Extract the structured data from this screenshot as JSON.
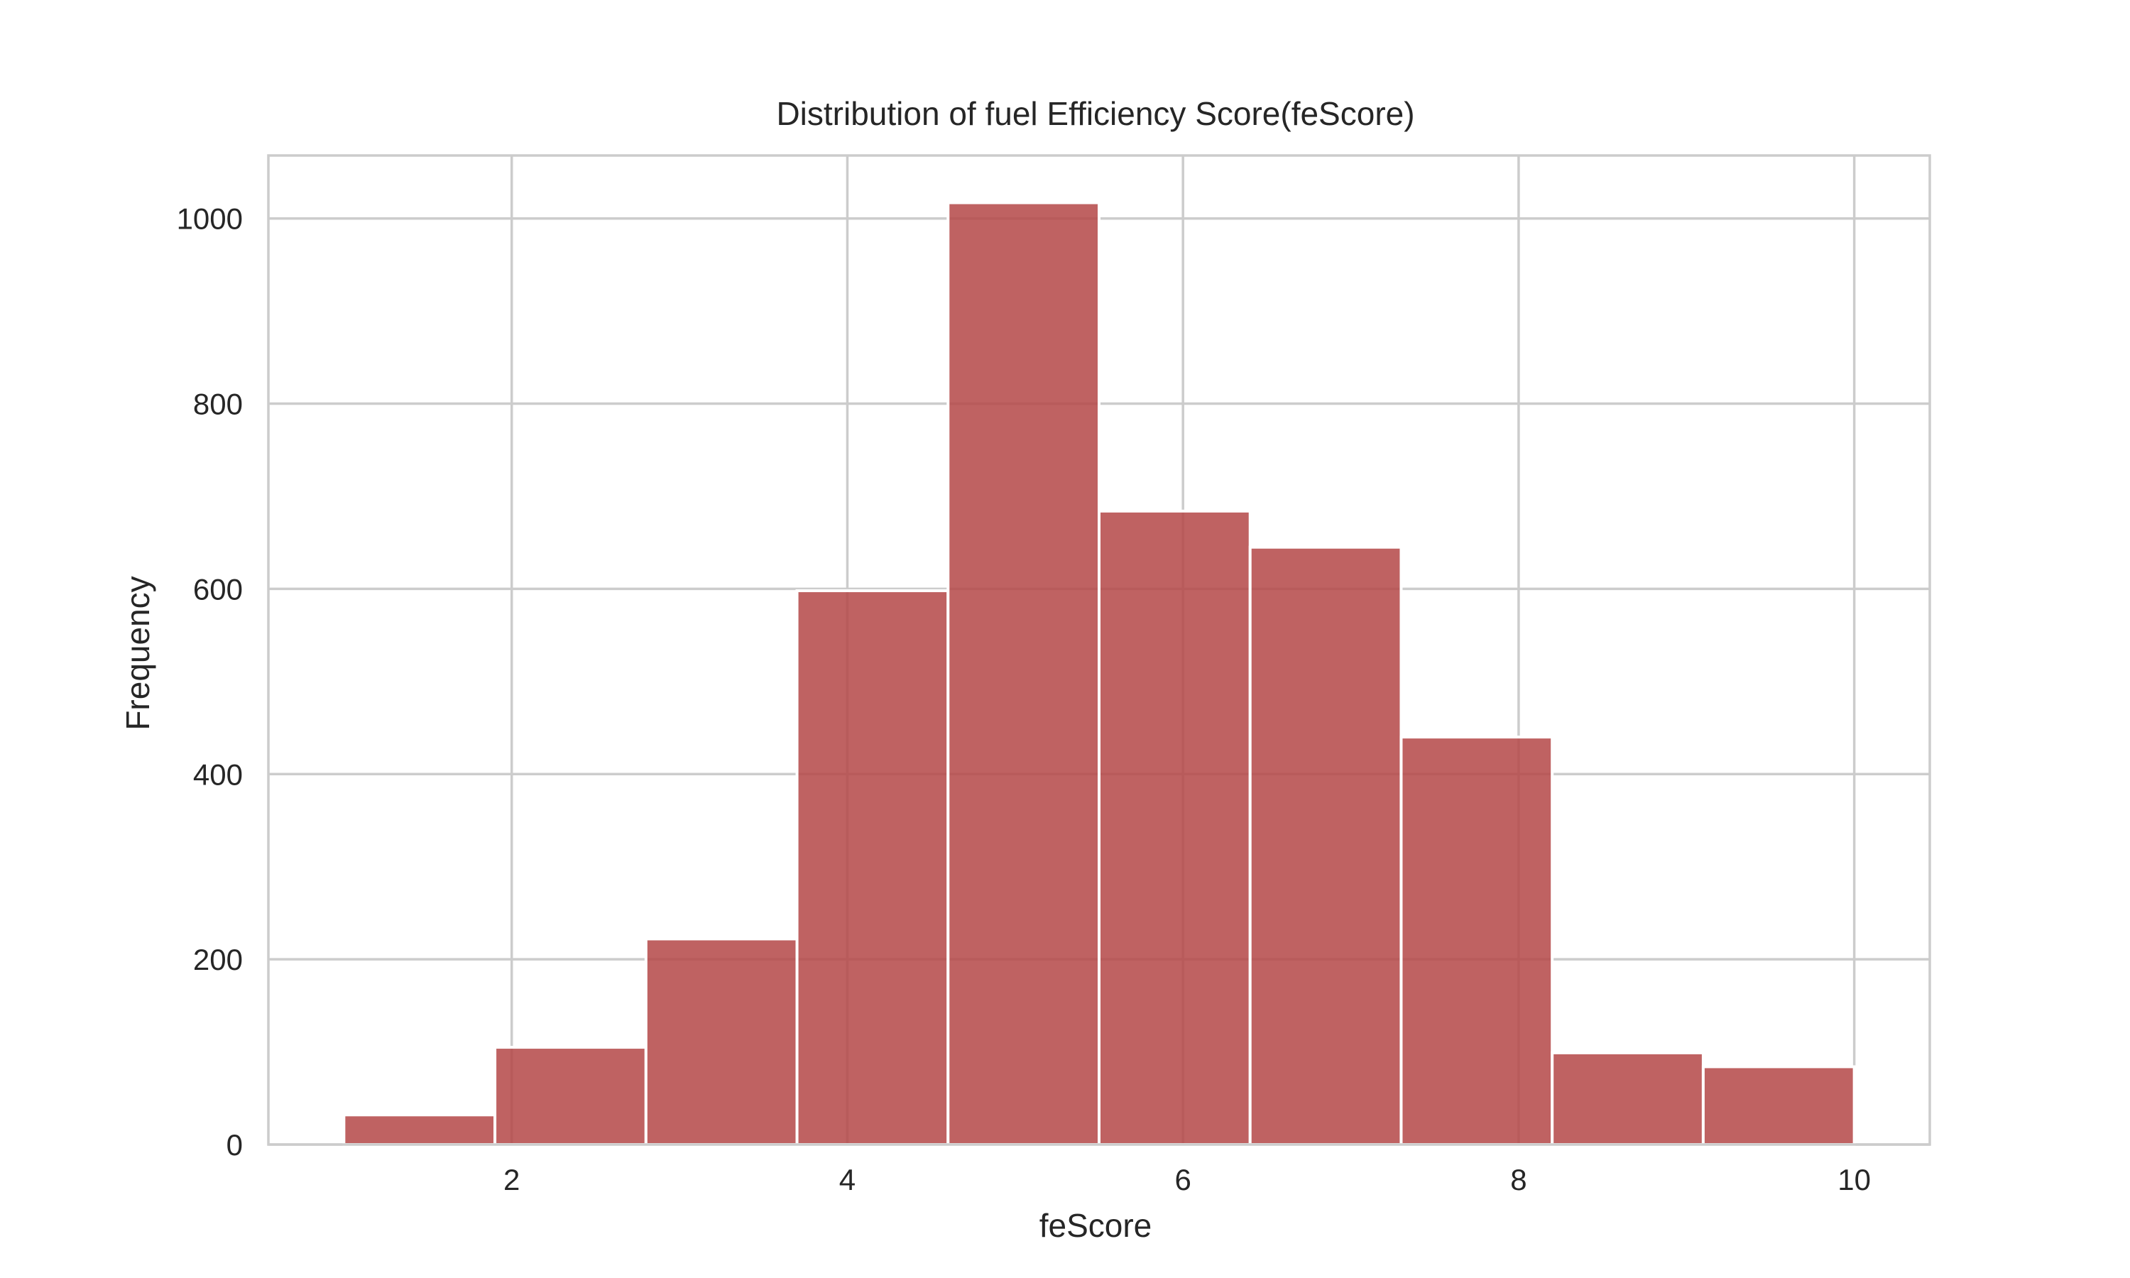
{
  "chart_data": {
    "type": "bar",
    "subtype": "histogram",
    "title": "Distribution of fuel Efficiency Score(feScore)",
    "xlabel": "feScore",
    "ylabel": "Frequency",
    "bin_edges": [
      1.0,
      1.9,
      2.8,
      3.7,
      4.6,
      5.5,
      6.4,
      7.3,
      8.2,
      9.1,
      10.0
    ],
    "values": [
      32,
      105,
      222,
      598,
      1017,
      684,
      645,
      440,
      99,
      84
    ],
    "xlim": [
      0.55,
      10.45
    ],
    "ylim": [
      0,
      1068
    ],
    "xticks": [
      2,
      4,
      6,
      8,
      10
    ],
    "yticks": [
      0,
      200,
      400,
      600,
      800,
      1000
    ],
    "grid": true,
    "legend": "none",
    "bar_color": "#b44646",
    "bar_opacity": 0.85,
    "edge_color": "#ffffff",
    "grid_color": "#cccccc",
    "text_color": "#262626"
  }
}
